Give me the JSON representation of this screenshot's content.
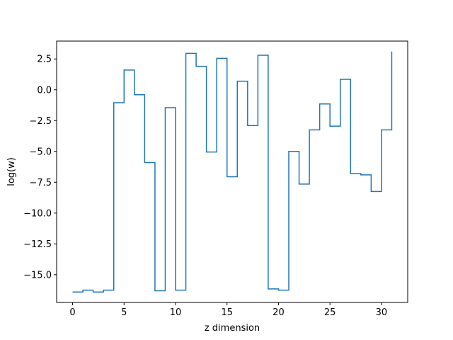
{
  "chart_data": {
    "type": "line",
    "drawstyle": "steps-post",
    "xlabel": "z dimension",
    "ylabel": "log(w)",
    "xlim": [
      -1.55,
      32.55
    ],
    "ylim": [
      -17.25,
      3.95
    ],
    "xticks": [
      0,
      5,
      10,
      15,
      20,
      25,
      30
    ],
    "yticks": [
      -15.0,
      -12.5,
      -10.0,
      -7.5,
      -5.0,
      -2.5,
      0.0,
      2.5
    ],
    "ytick_labels": [
      "−15.0",
      "−12.5",
      "−10.0",
      "−7.5",
      "−5.0",
      "−2.5",
      "0.0",
      "2.5"
    ],
    "grid": false,
    "series": [
      {
        "color": "#1f77b4",
        "x": [
          0,
          1,
          2,
          3,
          4,
          5,
          6,
          7,
          8,
          9,
          10,
          11,
          12,
          13,
          14,
          15,
          16,
          17,
          18,
          19,
          20,
          21,
          22,
          23,
          24,
          25,
          26,
          27,
          28,
          29,
          30,
          31
        ],
        "y": [
          -16.4,
          -16.25,
          -16.4,
          -16.25,
          -1.05,
          1.6,
          -0.4,
          -5.9,
          -16.3,
          -1.45,
          -16.25,
          2.95,
          1.9,
          -5.05,
          2.55,
          -7.05,
          0.7,
          -2.9,
          2.8,
          -16.15,
          -16.25,
          -5.0,
          -7.65,
          -3.25,
          -1.15,
          -2.95,
          0.85,
          -6.8,
          -6.9,
          -8.25,
          -3.25,
          3.1
        ]
      }
    ]
  }
}
